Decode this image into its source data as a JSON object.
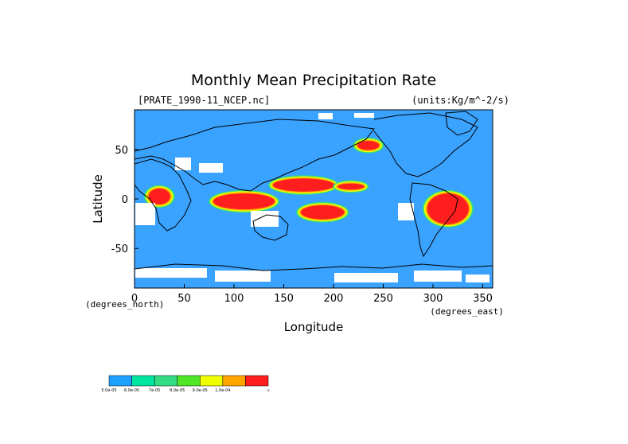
{
  "chart_data": {
    "type": "heatmap",
    "title": "Monthly Mean Precipitation Rate",
    "source_label": "[PRATE_1990-11_NCEP.nc]",
    "units_label": "(units:Kg/m^-2/s)",
    "xlabel": "Longitude",
    "ylabel": "Latitude",
    "x_unit_left": "(degrees_north)",
    "x_unit_right": "(degrees_east)",
    "xlim": [
      0,
      360
    ],
    "ylim": [
      -90,
      90
    ],
    "x_ticks": [
      0,
      50,
      100,
      150,
      200,
      250,
      300,
      350
    ],
    "y_ticks": [
      50,
      0,
      -50
    ],
    "ocean_color": "#3aa2ff",
    "colorbar": {
      "colors": [
        "#1ea0ff",
        "#00e6a0",
        "#32dc82",
        "#50e628",
        "#f0ff00",
        "#ffa500",
        "#ff1e1e"
      ],
      "labels": [
        "5.0e-05",
        "6.0e-05",
        "7e-05",
        "8.0e-05",
        "9.0e-05",
        "1.0e-04",
        "∞"
      ]
    },
    "regions": [
      {
        "level": 6,
        "lon": [
          140,
          200
        ],
        "lat": [
          8,
          20
        ]
      },
      {
        "level": 6,
        "lon": [
          168,
          210
        ],
        "lat": [
          -20,
          -7
        ]
      },
      {
        "level": 6,
        "lon": [
          295,
          335
        ],
        "lat": [
          -25,
          5
        ]
      },
      {
        "level": 6,
        "lon": [
          80,
          140
        ],
        "lat": [
          -10,
          5
        ]
      },
      {
        "level": 6,
        "lon": [
          15,
          35
        ],
        "lat": [
          -5,
          10
        ]
      },
      {
        "level": 6,
        "lon": [
          225,
          245
        ],
        "lat": [
          50,
          58
        ]
      },
      {
        "level": 6,
        "lon": [
          205,
          230
        ],
        "lat": [
          10,
          15
        ]
      }
    ]
  }
}
